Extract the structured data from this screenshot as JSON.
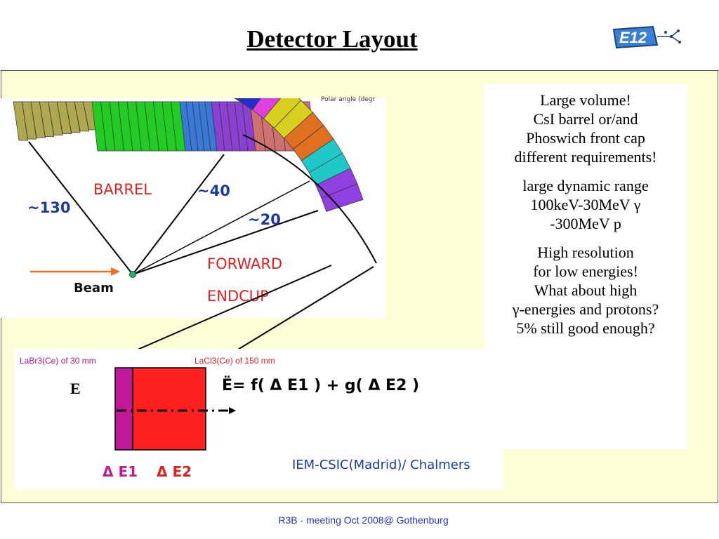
{
  "slide": {
    "title": "Detector Layout",
    "logo_text": "E12",
    "footer": "R3B  - meeting  Oct 2008@ Gothenburg"
  },
  "diagram": {
    "corner_text": "Polar angle (degr",
    "barrel_label": "BARREL",
    "angle_130": "~130",
    "angle_40": "~40",
    "angle_20": "~20",
    "forward_label": "FORWARD",
    "endcup_label": "ENDCUP",
    "beam_label": "Beam"
  },
  "notes": {
    "lines": [
      "Large volume!",
      "CsI barrel or/and",
      "Phoswich front cap",
      "different requirements!",
      "",
      "large dynamic range",
      "100keV-30MeV γ",
      "-300MeV p",
      "",
      "High resolution",
      "for low energies!",
      "What about high",
      "γ-energies and protons?",
      "5% still good enough?"
    ]
  },
  "phoswich": {
    "labr_label": "LaBr3(Ce) of 30 mm",
    "lacl_label": "LaCl3(Ce) of 150 mm",
    "e_label": "E",
    "formula": "Ë= f( Δ E1 ) + g( Δ E2 )",
    "delta_e1": "Δ E1",
    "delta_e2": "Δ E2",
    "credit": "IEM-CSIC(Madrid)/ Chalmers"
  },
  "colors": {
    "panel_bg": "#fdfdd6",
    "footer": "#2233cc",
    "annotation_red": "#e02020",
    "annotation_blue": "#1a3aa0",
    "labr_crystal": "#c0199a",
    "lacl_crystal": "#ff2020"
  }
}
